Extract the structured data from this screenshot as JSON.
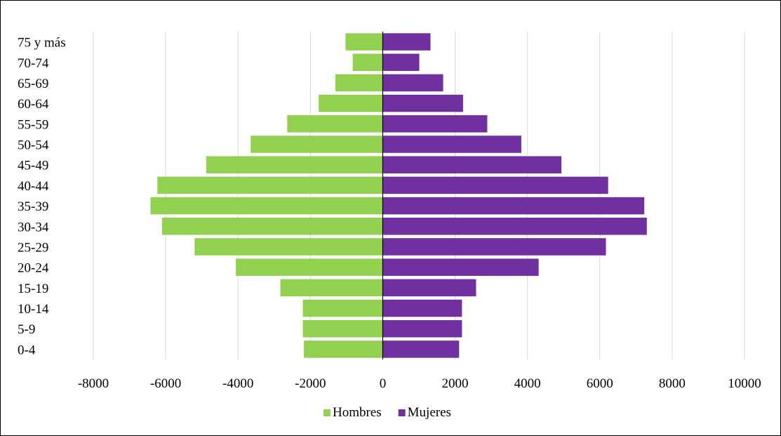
{
  "chart_data": {
    "type": "bar",
    "orientation": "horizontal",
    "stacked": "diverging",
    "categories": [
      "0-4",
      "5-9",
      "10-14",
      "15-19",
      "20-24",
      "25-29",
      "30-34",
      "35-39",
      "40-44",
      "45-49",
      "50-54",
      "55-59",
      "60-64",
      "65-69",
      "70-74",
      "75 y más"
    ],
    "series": [
      {
        "name": "Hombres",
        "color": "#92d050",
        "values": [
          -2180,
          -2210,
          -2210,
          -2830,
          -4060,
          -5200,
          -6100,
          -6420,
          -6230,
          -4880,
          -3650,
          -2640,
          -1770,
          -1310,
          -830,
          -1030
        ]
      },
      {
        "name": "Mujeres",
        "color": "#7030a0",
        "values": [
          2110,
          2190,
          2190,
          2580,
          4310,
          6170,
          7300,
          7230,
          6230,
          4940,
          3830,
          2890,
          2220,
          1670,
          1010,
          1320
        ]
      }
    ],
    "xlim": [
      -8000,
      10000
    ],
    "xticks": [
      "-8000",
      "-6000",
      "-4000",
      "-2000",
      "0",
      "2000",
      "4000",
      "6000",
      "8000",
      "10000"
    ],
    "xtick_values": [
      -8000,
      -6000,
      -4000,
      -2000,
      0,
      2000,
      4000,
      6000,
      8000,
      10000
    ],
    "grid": "vertical",
    "legend_position": "bottom-center",
    "title": "",
    "xlabel": "",
    "ylabel": ""
  }
}
